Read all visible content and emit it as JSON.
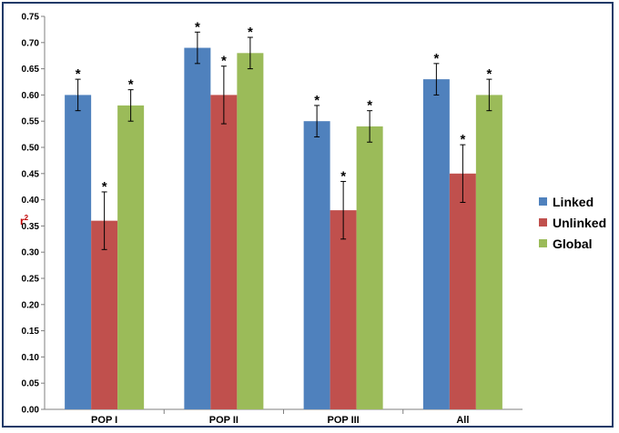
{
  "chart_data": {
    "type": "bar",
    "title": "",
    "xlabel": "",
    "ylabel": "r²",
    "ylabel_main": "r",
    "ylabel_sup": "2",
    "categories": [
      "POP I",
      "POP II",
      "POP III",
      "All"
    ],
    "series": [
      {
        "name": "Linked",
        "color": "#4f81bd",
        "values": [
          0.6,
          0.69,
          0.55,
          0.63
        ],
        "errors": [
          0.03,
          0.03,
          0.03,
          0.03
        ]
      },
      {
        "name": "Unlinked",
        "color": "#c0504d",
        "values": [
          0.36,
          0.6,
          0.38,
          0.45
        ],
        "errors": [
          0.055,
          0.055,
          0.055,
          0.055
        ]
      },
      {
        "name": "Global",
        "color": "#9bbb59",
        "values": [
          0.58,
          0.68,
          0.54,
          0.6
        ],
        "errors": [
          0.03,
          0.03,
          0.03,
          0.03
        ]
      }
    ],
    "ylim": [
      0,
      0.75
    ],
    "yticks": [
      "0.00",
      "0.05",
      "0.10",
      "0.15",
      "0.20",
      "0.25",
      "0.30",
      "0.35",
      "0.40",
      "0.45",
      "0.50",
      "0.55",
      "0.60",
      "0.65",
      "0.70",
      "0.75"
    ],
    "annotation_marker": "*",
    "legend_position": "right",
    "grid": false
  }
}
